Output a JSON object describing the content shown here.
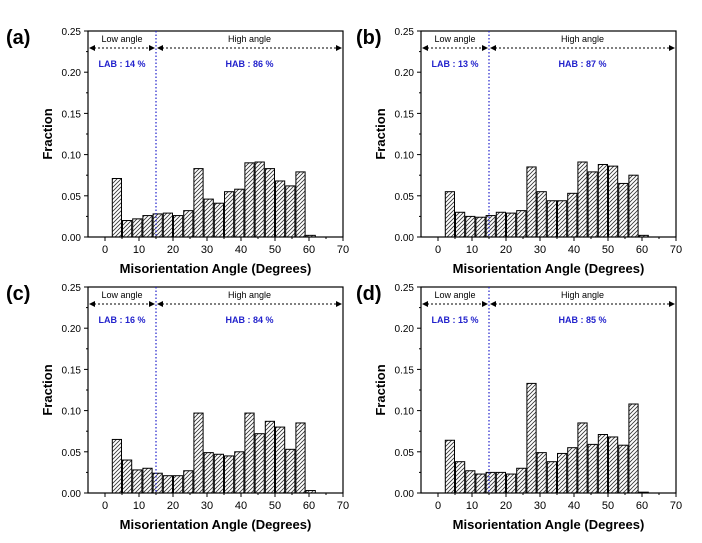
{
  "colors": {
    "axis": "#000000",
    "bar_fill": "#ffffff",
    "hatch": "#333333",
    "lab_hab": "#2222cc",
    "divider": "#2222cc"
  },
  "chart_data": [
    {
      "type": "bar",
      "panel_label": "(a)",
      "xlabel": "Misorientation Angle (Degrees)",
      "ylabel": "Fraction",
      "xlim": [
        -5,
        70
      ],
      "ylim": [
        0,
        0.25
      ],
      "xticks": [
        0,
        10,
        20,
        30,
        40,
        50,
        60,
        70
      ],
      "yticks": [
        "0.00",
        "0.05",
        "0.10",
        "0.15",
        "0.20",
        "0.25"
      ],
      "bin_width": 3,
      "x": [
        3.5,
        6.5,
        9.5,
        12.5,
        15.5,
        18.5,
        21.5,
        24.5,
        27.5,
        30.5,
        33.5,
        36.5,
        39.5,
        42.5,
        45.5,
        48.5,
        51.5,
        54.5,
        57.5,
        60.5,
        63.5
      ],
      "values": [
        0.071,
        0.02,
        0.022,
        0.026,
        0.028,
        0.029,
        0.026,
        0.032,
        0.083,
        0.046,
        0.041,
        0.055,
        0.058,
        0.09,
        0.091,
        0.083,
        0.068,
        0.062,
        0.079,
        0.002,
        0.0
      ],
      "divider_x": 15,
      "low_label": "Low angle",
      "high_label": "High angle",
      "lab_text": "LAB : 14 %",
      "hab_text": "HAB : 86 %",
      "grid": false
    },
    {
      "type": "bar",
      "panel_label": "(b)",
      "xlabel": "Misorientation Angle (Degrees)",
      "ylabel": "Fraction",
      "xlim": [
        -5,
        70
      ],
      "ylim": [
        0,
        0.25
      ],
      "xticks": [
        0,
        10,
        20,
        30,
        40,
        50,
        60,
        70
      ],
      "yticks": [
        "0.00",
        "0.05",
        "0.10",
        "0.15",
        "0.20",
        "0.25"
      ],
      "bin_width": 3,
      "x": [
        3.5,
        6.5,
        9.5,
        12.5,
        15.5,
        18.5,
        21.5,
        24.5,
        27.5,
        30.5,
        33.5,
        36.5,
        39.5,
        42.5,
        45.5,
        48.5,
        51.5,
        54.5,
        57.5,
        60.5,
        63.5
      ],
      "values": [
        0.055,
        0.03,
        0.025,
        0.024,
        0.026,
        0.03,
        0.029,
        0.032,
        0.085,
        0.055,
        0.044,
        0.044,
        0.053,
        0.091,
        0.079,
        0.088,
        0.086,
        0.065,
        0.075,
        0.002,
        0.0
      ],
      "divider_x": 15,
      "low_label": "Low angle",
      "high_label": "High angle",
      "lab_text": "LAB : 13 %",
      "hab_text": "HAB : 87 %",
      "grid": false
    },
    {
      "type": "bar",
      "panel_label": "(c)",
      "xlabel": "Misorientation Angle (Degrees)",
      "ylabel": "Fraction",
      "xlim": [
        -5,
        70
      ],
      "ylim": [
        0,
        0.25
      ],
      "xticks": [
        0,
        10,
        20,
        30,
        40,
        50,
        60,
        70
      ],
      "yticks": [
        "0.00",
        "0.05",
        "0.10",
        "0.15",
        "0.20",
        "0.25"
      ],
      "bin_width": 3,
      "x": [
        3.5,
        6.5,
        9.5,
        12.5,
        15.5,
        18.5,
        21.5,
        24.5,
        27.5,
        30.5,
        33.5,
        36.5,
        39.5,
        42.5,
        45.5,
        48.5,
        51.5,
        54.5,
        57.5,
        60.5,
        63.5
      ],
      "values": [
        0.065,
        0.04,
        0.028,
        0.03,
        0.024,
        0.021,
        0.021,
        0.027,
        0.097,
        0.049,
        0.047,
        0.045,
        0.05,
        0.097,
        0.072,
        0.087,
        0.08,
        0.053,
        0.085,
        0.003,
        0.0
      ],
      "divider_x": 15,
      "low_label": "Low angle",
      "high_label": "High angle",
      "lab_text": "LAB : 16 %",
      "hab_text": "HAB : 84 %",
      "grid": false
    },
    {
      "type": "bar",
      "panel_label": "(d)",
      "xlabel": "Misorientation Angle (Degrees)",
      "ylabel": "Fraction",
      "xlim": [
        -5,
        70
      ],
      "ylim": [
        0,
        0.25
      ],
      "xticks": [
        0,
        10,
        20,
        30,
        40,
        50,
        60,
        70
      ],
      "yticks": [
        "0.00",
        "0.05",
        "0.10",
        "0.15",
        "0.20",
        "0.25"
      ],
      "bin_width": 3,
      "x": [
        3.5,
        6.5,
        9.5,
        12.5,
        15.5,
        18.5,
        21.5,
        24.5,
        27.5,
        30.5,
        33.5,
        36.5,
        39.5,
        42.5,
        45.5,
        48.5,
        51.5,
        54.5,
        57.5,
        60.5,
        63.5
      ],
      "values": [
        0.064,
        0.038,
        0.027,
        0.023,
        0.025,
        0.025,
        0.023,
        0.03,
        0.133,
        0.049,
        0.038,
        0.048,
        0.055,
        0.085,
        0.059,
        0.071,
        0.068,
        0.058,
        0.108,
        0.001,
        0.0
      ],
      "divider_x": 15,
      "low_label": "Low angle",
      "high_label": "High angle",
      "lab_text": "LAB : 15 %",
      "hab_text": "HAB : 85 %",
      "grid": false
    }
  ]
}
